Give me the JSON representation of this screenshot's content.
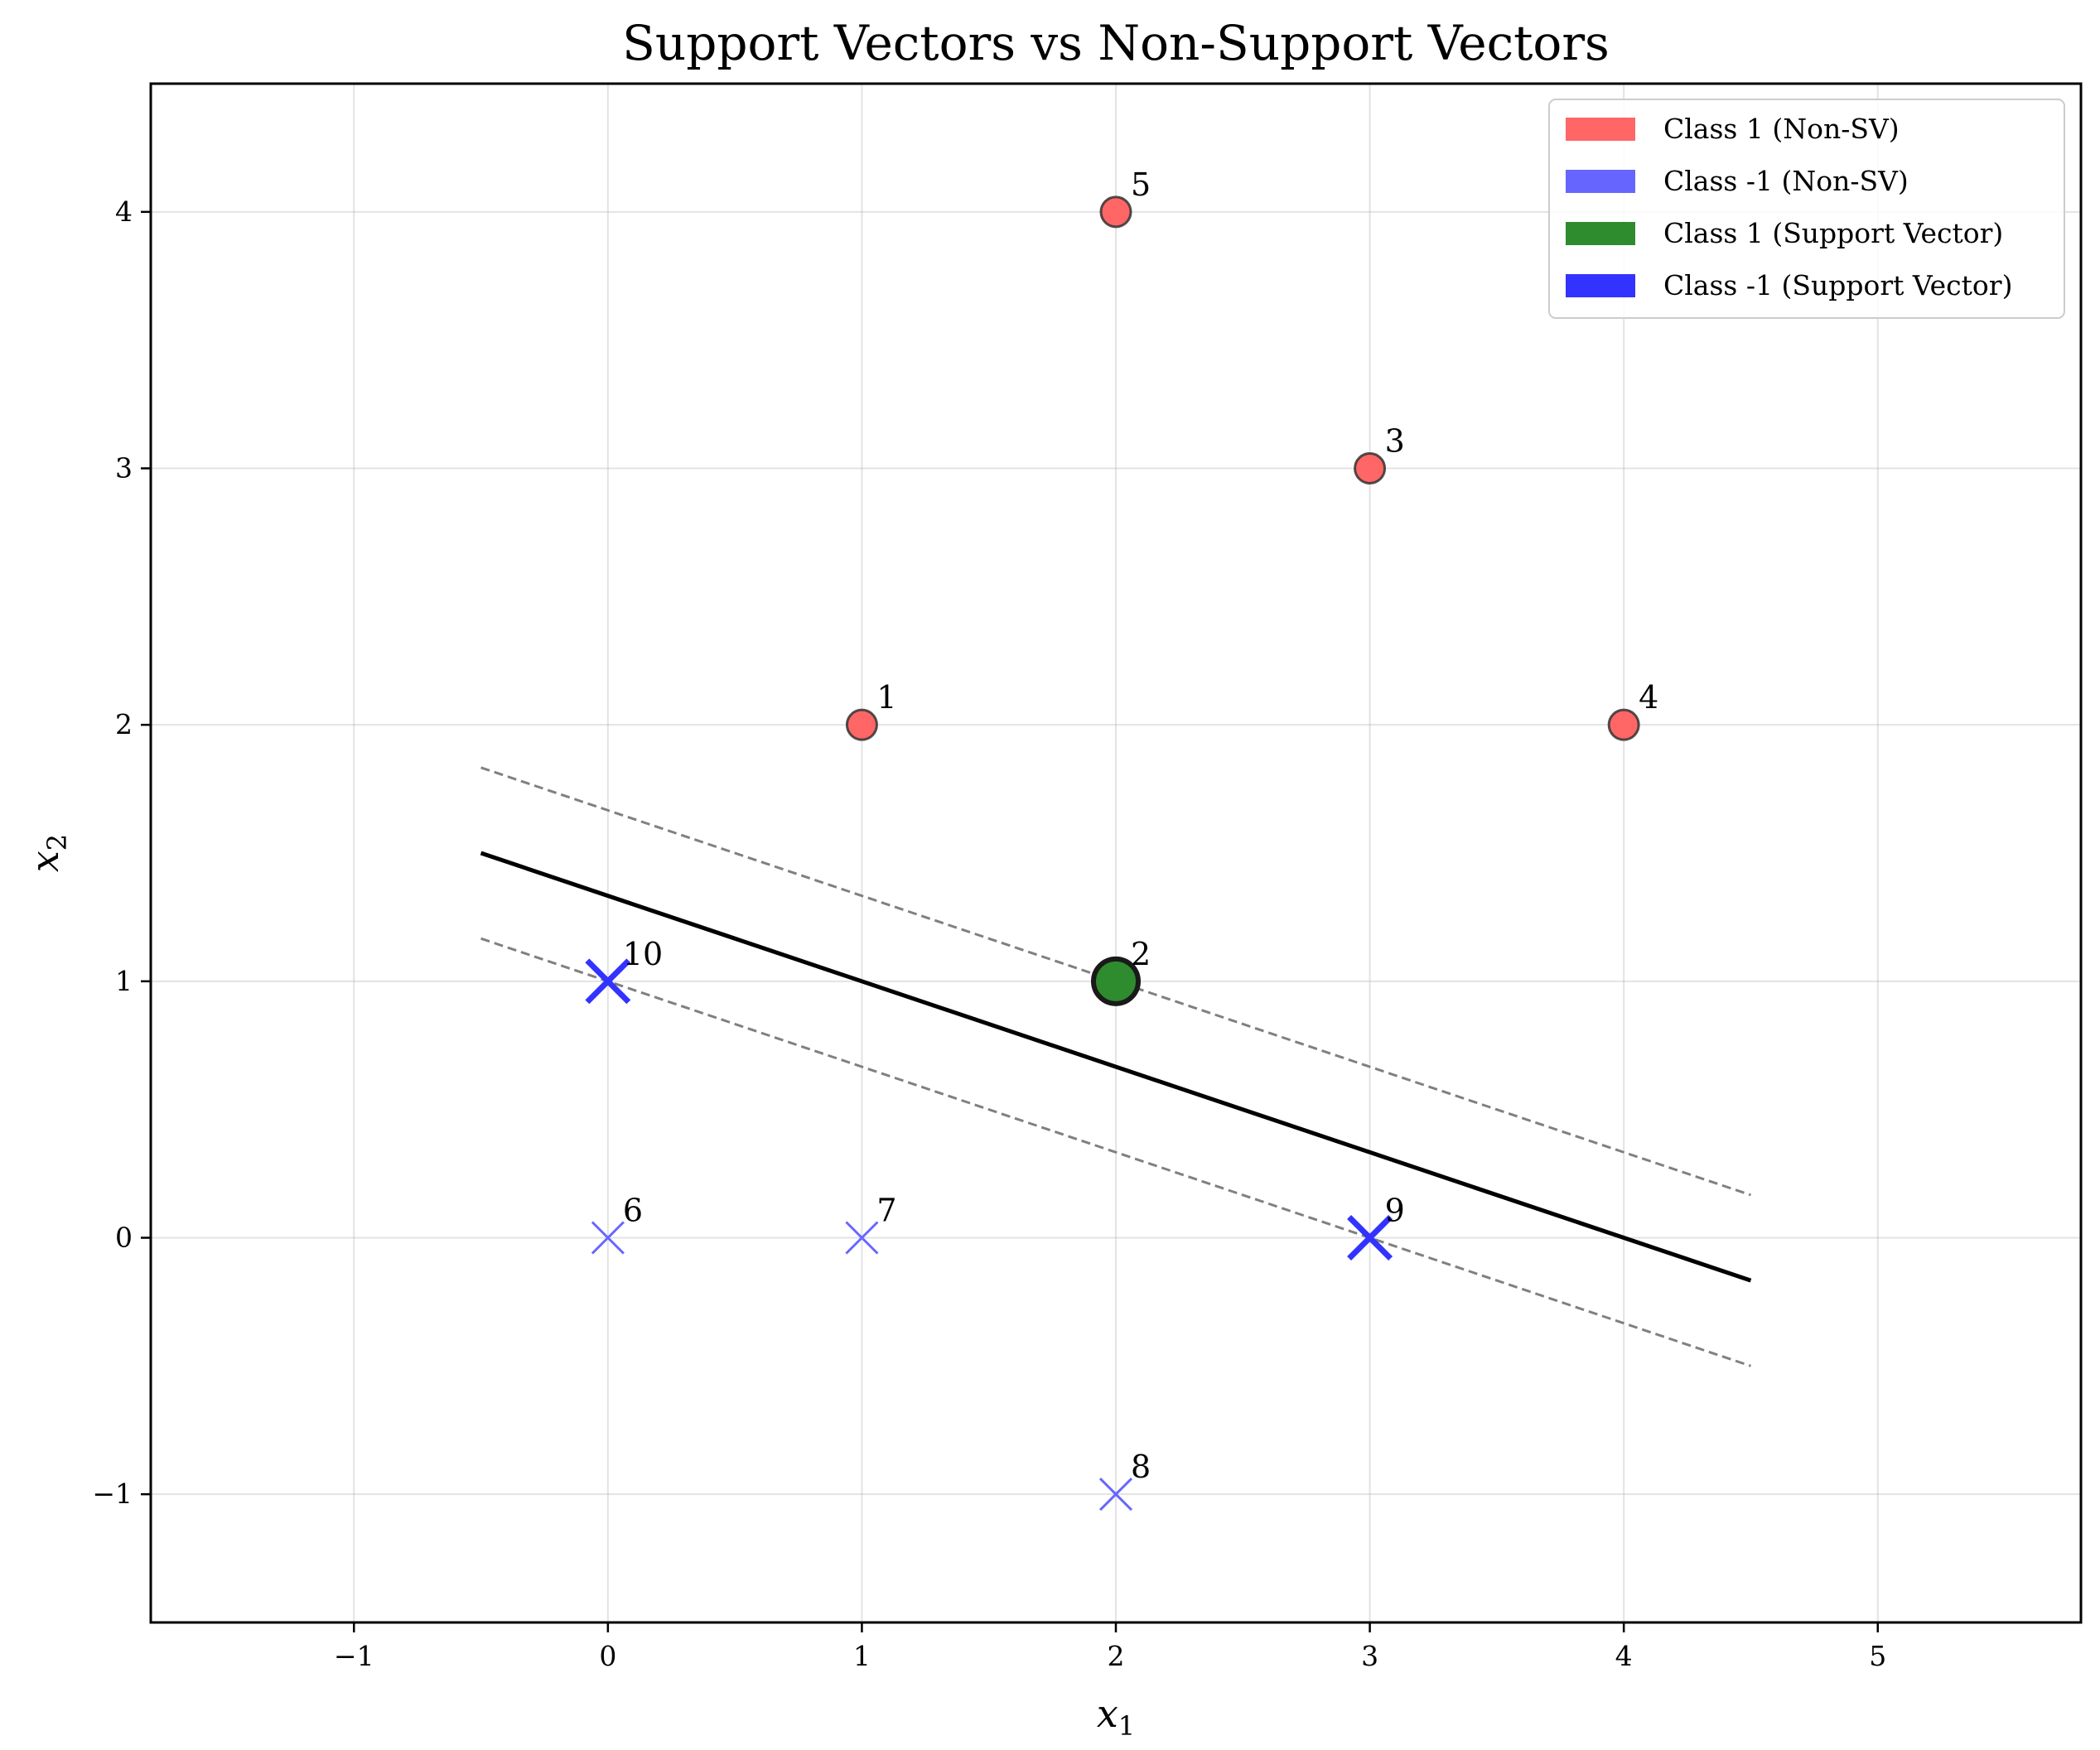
{
  "chart_data": {
    "type": "scatter",
    "title": "Support Vectors vs Non-Support Vectors",
    "xlabel": "x",
    "xlabel_sub": "1",
    "ylabel": "x",
    "ylabel_sub": "2",
    "xlim": [
      -1.8,
      5.8
    ],
    "ylim": [
      -1.5,
      4.5
    ],
    "xticks": [
      -1,
      0,
      1,
      2,
      3,
      4,
      5
    ],
    "xtick_labels": [
      "−1",
      "0",
      "1",
      "2",
      "3",
      "4",
      "5"
    ],
    "yticks": [
      -1,
      0,
      1,
      2,
      3,
      4
    ],
    "ytick_labels": [
      "−1",
      "0",
      "1",
      "2",
      "3",
      "4"
    ],
    "grid": true,
    "legend_position": "top-right",
    "colors": {
      "class1_non_sv": "#ff6666",
      "class_neg1_non_sv": "#6666ff",
      "class1_sv": "#2e8b2e",
      "class_neg1_sv": "#3333ff",
      "hyperplane": "#000000",
      "margin": "#808080"
    },
    "series": [
      {
        "name": "Class 1 (Non-SV)",
        "marker": "circle",
        "color": "#ff6666",
        "points": [
          {
            "label": "1",
            "x": 1,
            "y": 2
          },
          {
            "label": "3",
            "x": 3,
            "y": 3
          },
          {
            "label": "4",
            "x": 4,
            "y": 2
          },
          {
            "label": "5",
            "x": 2,
            "y": 4
          }
        ]
      },
      {
        "name": "Class -1 (Non-SV)",
        "marker": "x",
        "color": "#6666ff",
        "points": [
          {
            "label": "6",
            "x": 0,
            "y": 0
          },
          {
            "label": "7",
            "x": 1,
            "y": 0
          },
          {
            "label": "8",
            "x": 2,
            "y": -1
          }
        ]
      },
      {
        "name": "Class 1 (Support Vector)",
        "marker": "circle-large",
        "color": "#2e8b2e",
        "points": [
          {
            "label": "2",
            "x": 2,
            "y": 1
          }
        ]
      },
      {
        "name": "Class -1 (Support Vector)",
        "marker": "x-large",
        "color": "#3333ff",
        "points": [
          {
            "label": "9",
            "x": 3,
            "y": 0
          },
          {
            "label": "10",
            "x": 0,
            "y": 1
          }
        ]
      }
    ],
    "lines": [
      {
        "role": "decision-boundary",
        "style": "solid",
        "x": [
          -0.5,
          4.5
        ],
        "y": [
          1.5,
          -0.1667
        ]
      },
      {
        "role": "margin-upper",
        "style": "dashed",
        "x": [
          -0.5,
          4.5
        ],
        "y": [
          1.8333,
          0.1667
        ]
      },
      {
        "role": "margin-lower",
        "style": "dashed",
        "x": [
          -0.5,
          4.5
        ],
        "y": [
          1.1667,
          -0.5
        ]
      }
    ]
  }
}
